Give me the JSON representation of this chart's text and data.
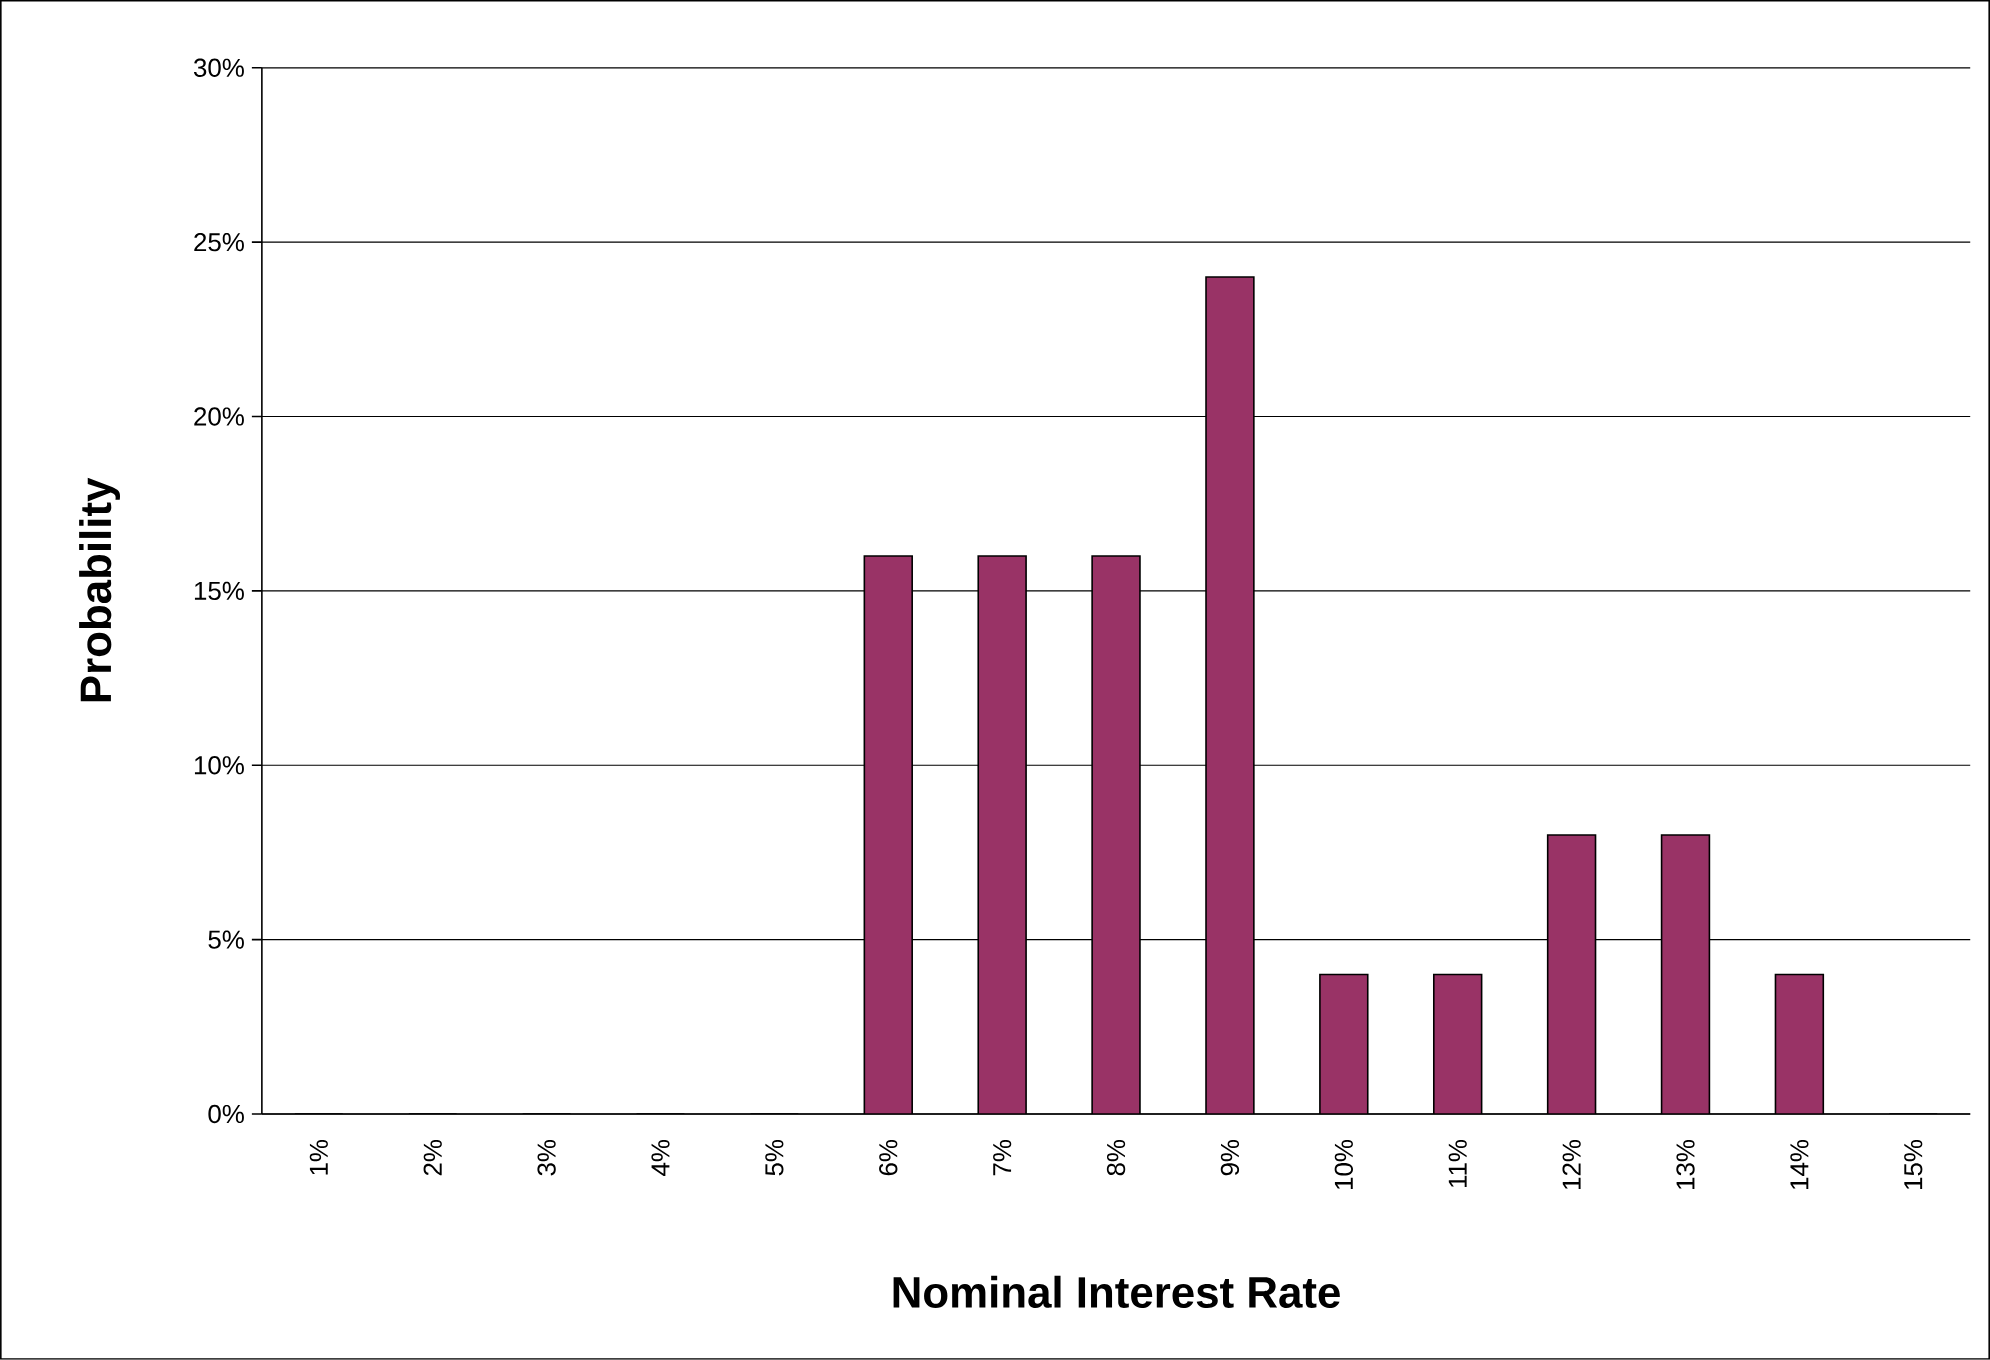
{
  "chart_data": {
    "type": "bar",
    "xlabel": "Nominal Interest Rate",
    "ylabel": "Probability",
    "categories": [
      "1%",
      "2%",
      "3%",
      "4%",
      "5%",
      "6%",
      "7%",
      "8%",
      "9%",
      "10%",
      "11%",
      "12%",
      "13%",
      "14%",
      "15%"
    ],
    "values": [
      0,
      0,
      0,
      0,
      0,
      16,
      16,
      16,
      24,
      4,
      4,
      8,
      8,
      4,
      0
    ],
    "color": "#993366",
    "ylim": [
      0,
      30
    ],
    "yticks": [
      {
        "value": 0,
        "label": "0%"
      },
      {
        "value": 5,
        "label": "5%"
      },
      {
        "value": 10,
        "label": "10%"
      },
      {
        "value": 15,
        "label": "15%"
      },
      {
        "value": 20,
        "label": "20%"
      },
      {
        "value": 25,
        "label": "25%"
      },
      {
        "value": 30,
        "label": "30%"
      }
    ],
    "grid": "y"
  }
}
